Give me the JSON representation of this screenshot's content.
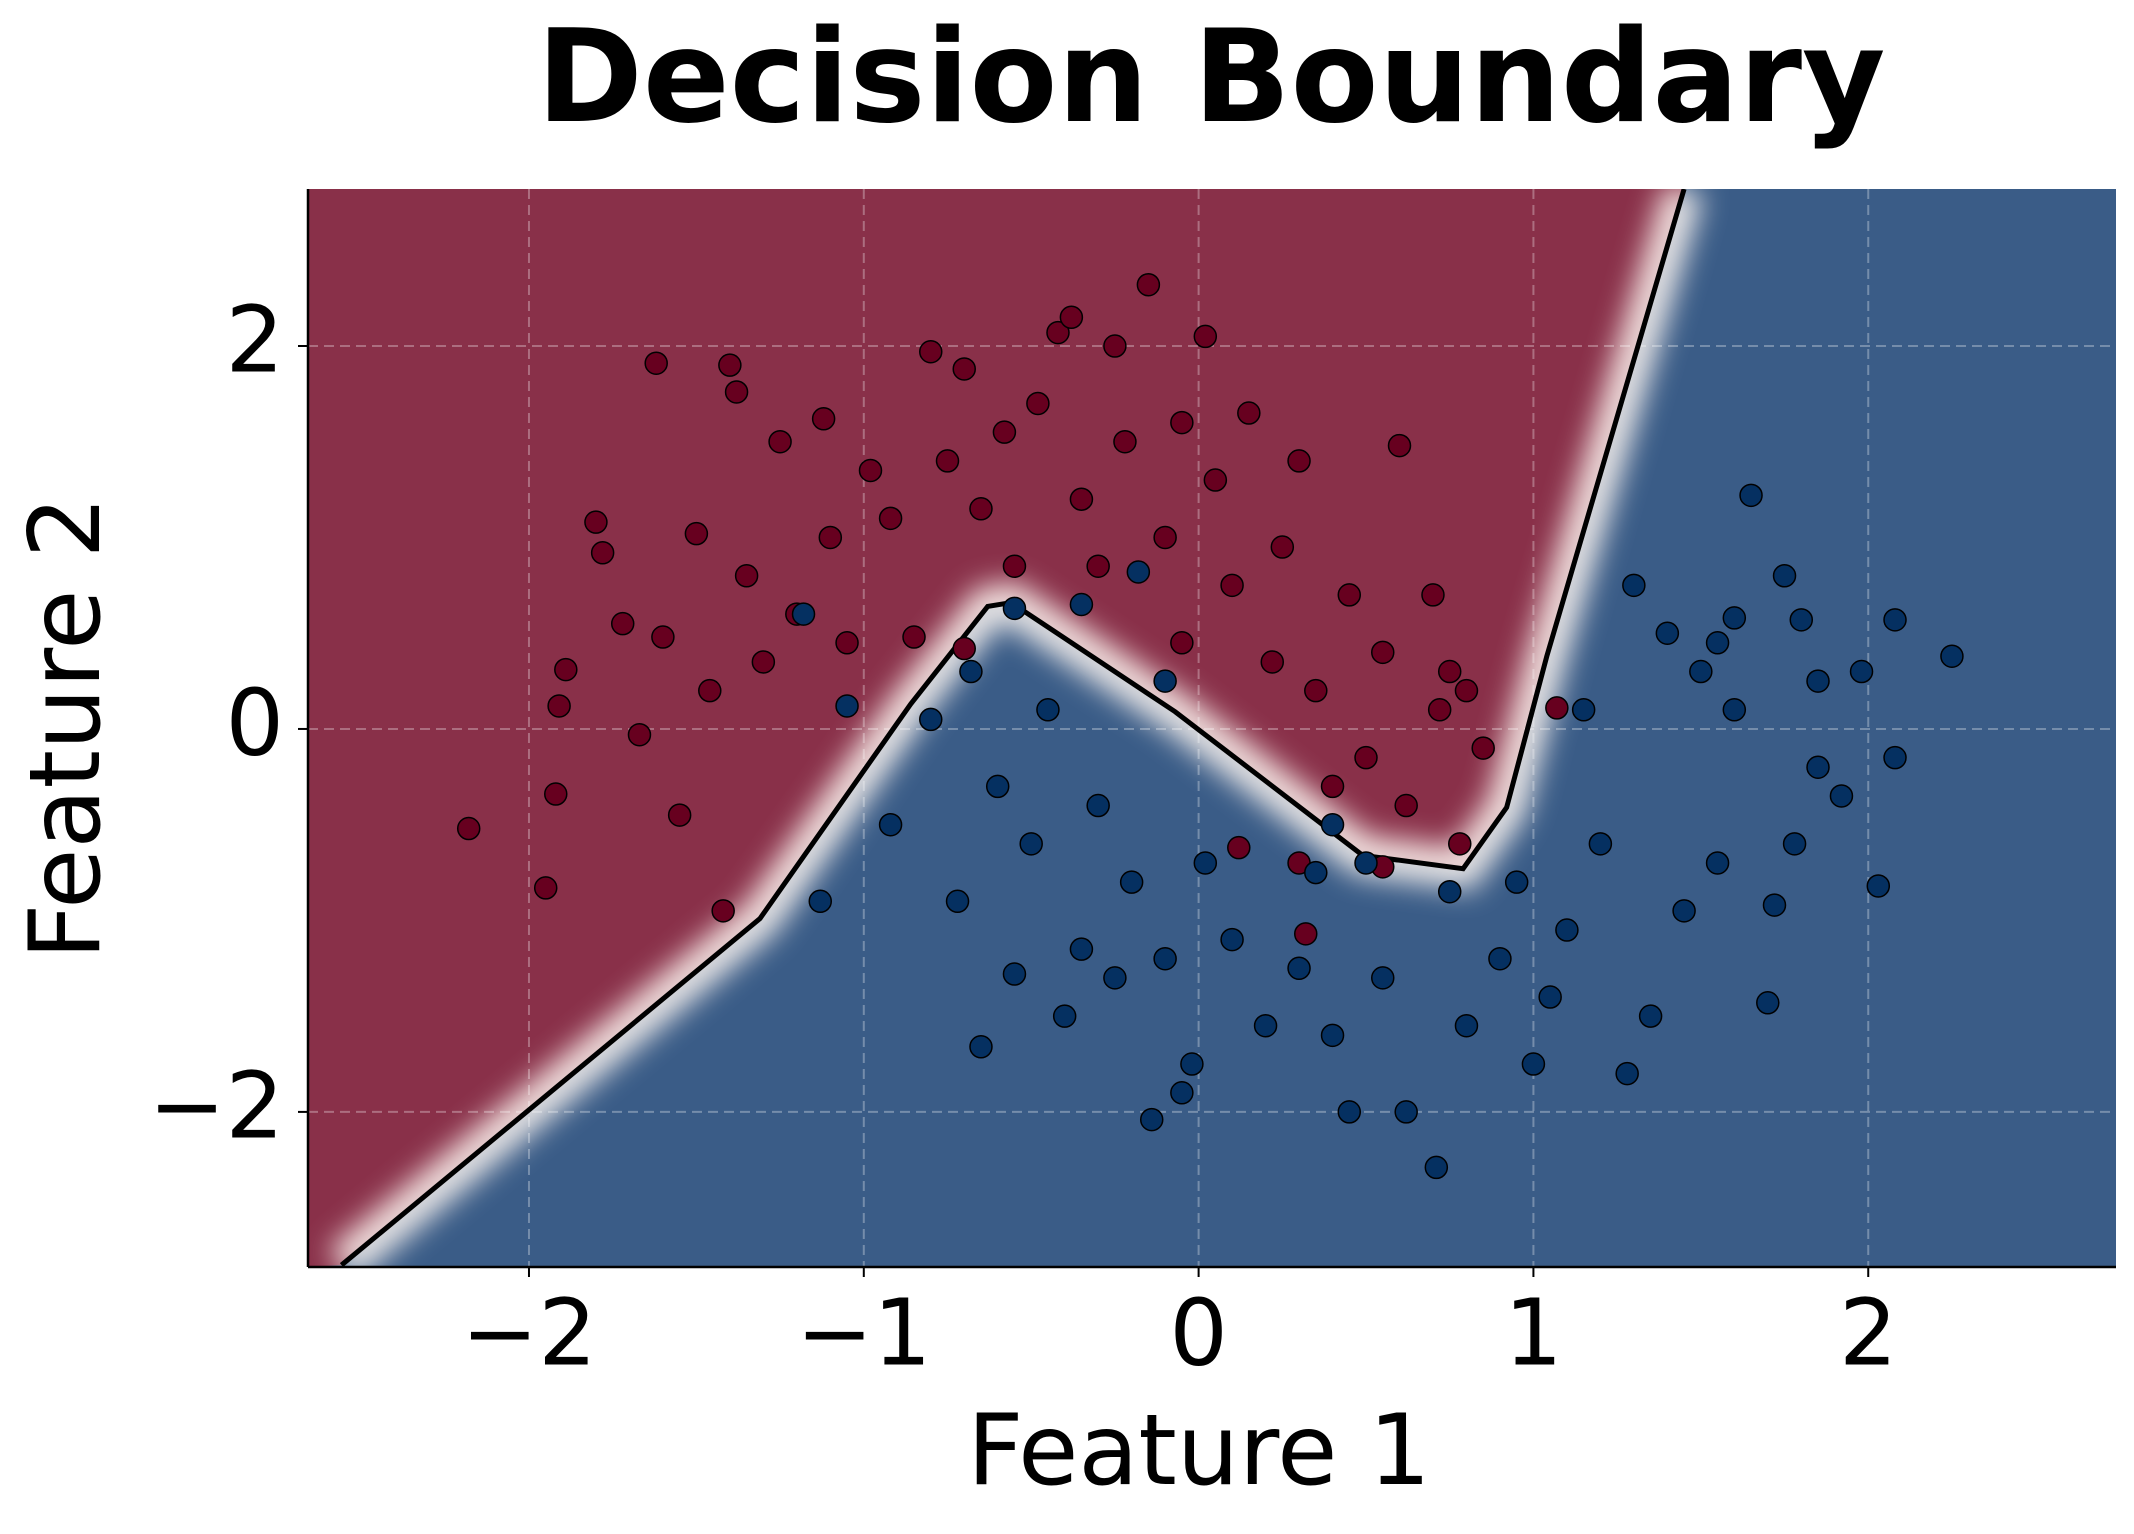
{
  "chart_data": {
    "type": "scatter",
    "title": "Decision Boundary",
    "xlabel": "Feature 1",
    "ylabel": "Feature 2",
    "xlim": [
      -2.66,
      2.74
    ],
    "ylim": [
      -2.81,
      2.82
    ],
    "xticks": [
      {
        "value": -2,
        "label": "−2"
      },
      {
        "value": -1,
        "label": "−1"
      },
      0,
      1,
      2
    ],
    "yticks": [
      {
        "value": -2,
        "label": "−2"
      },
      0,
      2
    ],
    "grid": true,
    "region_colors": [
      "#893049",
      "#3a5c87"
    ],
    "boundary": {
      "color": "#000000",
      "x": [
        -2.56,
        -1.31,
        -0.86,
        -0.63,
        -0.56,
        -0.07,
        0.49,
        0.79,
        0.92,
        1.04,
        1.45
      ],
      "values": [
        -2.8,
        -0.99,
        0.13,
        0.64,
        0.66,
        0.09,
        -0.66,
        -0.73,
        -0.41,
        0.38,
        2.82
      ]
    },
    "series": [
      {
        "color": "#67001f",
        "x": [
          -2.18,
          -1.95,
          -1.92,
          -1.89,
          -1.91,
          -1.8,
          -1.78,
          -1.72,
          -1.67,
          -1.62,
          -1.6,
          -1.55,
          -1.5,
          -1.46,
          -1.4,
          -1.38,
          -1.42,
          -1.35,
          -1.3,
          -1.25,
          -1.2,
          -1.12,
          -1.1,
          -1.05,
          -0.98,
          -0.92,
          -0.85,
          -0.8,
          -0.75,
          -0.7,
          -0.65,
          -0.58,
          -0.55,
          -0.48,
          -0.42,
          -0.38,
          -0.35,
          -0.3,
          -0.25,
          -0.22,
          -0.15,
          -0.1,
          -0.05,
          0.02,
          0.05,
          0.1,
          0.15,
          0.22,
          0.25,
          0.3,
          0.35,
          0.4,
          0.45,
          0.5,
          0.55,
          0.6,
          0.62,
          0.7,
          0.75,
          0.78,
          0.8,
          0.85,
          0.72,
          0.3,
          0.32,
          0.12,
          -0.7,
          1.07,
          0.55,
          -0.05
        ],
        "values": [
          -0.52,
          -0.83,
          -0.34,
          0.31,
          0.12,
          1.08,
          0.92,
          0.55,
          -0.03,
          1.91,
          0.48,
          -0.45,
          1.02,
          0.2,
          1.9,
          1.76,
          -0.95,
          0.8,
          0.35,
          1.5,
          0.6,
          1.62,
          1.0,
          0.45,
          1.35,
          1.1,
          0.48,
          1.97,
          1.4,
          1.88,
          1.15,
          1.55,
          0.85,
          1.7,
          2.07,
          2.15,
          1.2,
          0.85,
          2.0,
          1.5,
          2.32,
          1.0,
          1.6,
          2.05,
          1.3,
          0.75,
          1.65,
          0.35,
          0.95,
          1.4,
          0.2,
          -0.3,
          0.7,
          -0.15,
          0.4,
          1.48,
          -0.4,
          0.7,
          0.3,
          -0.6,
          0.2,
          -0.1,
          0.1,
          -0.7,
          -1.07,
          -0.62,
          0.42,
          0.11,
          -0.72,
          0.45
        ]
      },
      {
        "color": "#053061",
        "x": [
          2.25,
          2.08,
          2.08,
          2.03,
          1.98,
          1.92,
          1.85,
          1.8,
          1.78,
          1.75,
          1.72,
          1.7,
          1.65,
          1.6,
          1.55,
          1.5,
          1.45,
          1.4,
          1.35,
          1.3,
          1.28,
          1.2,
          1.15,
          1.1,
          1.05,
          1.0,
          0.95,
          0.9,
          0.8,
          0.75,
          0.71,
          0.62,
          0.55,
          0.45,
          0.4,
          0.35,
          0.3,
          0.2,
          0.1,
          0.02,
          -0.02,
          -0.05,
          -0.1,
          -0.14,
          -0.2,
          -0.25,
          -0.3,
          -0.35,
          -0.4,
          -0.45,
          -0.5,
          -0.55,
          -0.6,
          -0.65,
          -0.68,
          -0.72,
          -0.8,
          -0.92,
          -1.05,
          -1.13,
          -1.18,
          -0.55,
          -0.35,
          -0.18,
          -0.1,
          0.4,
          0.5,
          1.55,
          1.85,
          1.6
        ],
        "values": [
          0.38,
          0.57,
          -0.15,
          -0.82,
          0.3,
          -0.35,
          0.25,
          0.57,
          -0.6,
          0.8,
          -0.92,
          -1.43,
          1.22,
          0.1,
          -0.7,
          0.3,
          -0.95,
          0.5,
          -1.5,
          0.75,
          -1.8,
          -0.6,
          0.1,
          -1.05,
          -1.4,
          -1.75,
          -0.8,
          -1.2,
          -1.55,
          -0.85,
          -2.29,
          -2.0,
          -1.3,
          -2.0,
          -1.6,
          -0.75,
          -1.25,
          -1.55,
          -1.1,
          -0.7,
          -1.75,
          -1.9,
          -1.2,
          -2.04,
          -0.8,
          -1.3,
          -0.4,
          -1.15,
          -1.5,
          0.1,
          -0.6,
          -1.28,
          -0.3,
          -1.66,
          0.3,
          -0.9,
          0.05,
          -0.5,
          0.12,
          -0.9,
          0.6,
          0.63,
          0.65,
          0.82,
          0.25,
          -0.5,
          -0.7,
          0.45,
          -0.2,
          0.58
        ]
      }
    ]
  }
}
